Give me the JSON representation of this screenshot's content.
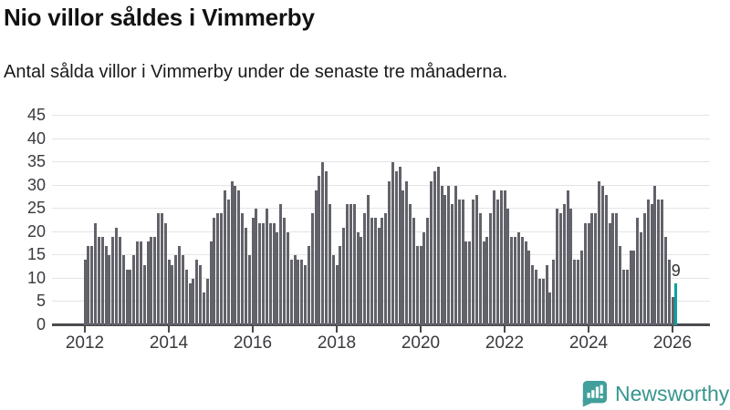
{
  "header": {
    "title": "Nio villor såldes i Vimmerby",
    "subtitle": "Antal sålda villor i Vimmerby under de senaste tre månaderna."
  },
  "chart_data": {
    "type": "bar",
    "title": "Nio villor såldes i Vimmerby",
    "subtitle": "Antal sålda villor i Vimmerby under de senaste tre månaderna.",
    "frequency": "monthly",
    "x_start": "2012-01",
    "x_end": "2026-02",
    "ylim": [
      0,
      45
    ],
    "yticks": [
      0,
      5,
      10,
      15,
      20,
      25,
      30,
      35,
      40,
      45
    ],
    "xticks": [
      2012,
      2014,
      2016,
      2018,
      2020,
      2022,
      2024,
      2026
    ],
    "grid": true,
    "bar_color": "#62626a",
    "highlight_color": "#0aa2a0",
    "values": [
      14,
      17,
      17,
      22,
      19,
      19,
      17,
      15,
      19,
      21,
      19,
      15,
      12,
      12,
      15,
      18,
      18,
      13,
      18,
      19,
      19,
      24,
      24,
      22,
      14,
      13,
      15,
      17,
      15,
      12,
      9,
      10,
      14,
      13,
      7,
      10,
      18,
      23,
      24,
      24,
      29,
      27,
      31,
      30,
      29,
      24,
      21,
      15,
      23,
      25,
      22,
      22,
      25,
      22,
      22,
      20,
      26,
      23,
      20,
      14,
      15,
      14,
      14,
      13,
      17,
      24,
      29,
      32,
      35,
      33,
      26,
      15,
      13,
      17,
      21,
      26,
      26,
      26,
      20,
      19,
      24,
      28,
      23,
      23,
      21,
      23,
      24,
      31,
      35,
      33,
      34,
      29,
      31,
      26,
      23,
      17,
      17,
      20,
      23,
      31,
      33,
      34,
      30,
      28,
      30,
      26,
      30,
      27,
      27,
      18,
      18,
      27,
      28,
      24,
      18,
      19,
      24,
      29,
      27,
      29,
      29,
      25,
      19,
      19,
      20,
      19,
      18,
      16,
      13,
      12,
      10,
      10,
      13,
      7,
      14,
      25,
      24,
      26,
      29,
      25,
      14,
      14,
      16,
      22,
      22,
      24,
      24,
      31,
      30,
      28,
      22,
      24,
      24,
      17,
      12,
      12,
      16,
      16,
      23,
      20,
      24,
      27,
      26,
      30,
      27,
      27,
      19,
      14,
      6,
      9
    ],
    "highlight": {
      "index": 169,
      "value": 9,
      "label": "9"
    }
  },
  "branding": {
    "logo_text": "Newsworthy",
    "logo_icon": "bar-chart-speech-bubble",
    "color": "#37958f"
  }
}
